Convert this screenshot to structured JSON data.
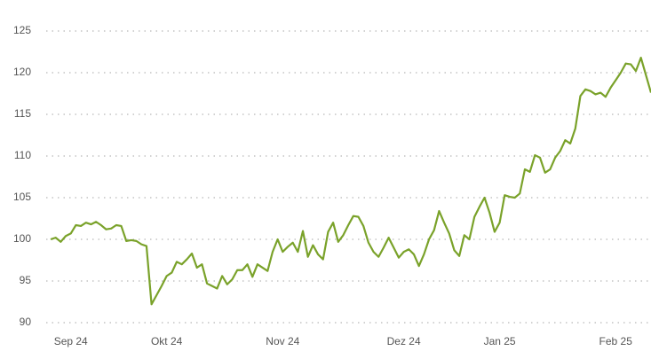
{
  "chart_data": {
    "type": "line",
    "categories": [
      null,
      null,
      null,
      null,
      "Sep 24",
      null,
      null,
      null,
      null,
      null,
      null,
      null,
      null,
      null,
      null,
      null,
      null,
      null,
      null,
      null,
      null,
      null,
      null,
      "Okt 24",
      null,
      null,
      null,
      null,
      null,
      null,
      null,
      null,
      null,
      null,
      null,
      null,
      null,
      null,
      null,
      null,
      null,
      null,
      null,
      null,
      null,
      null,
      "Nov 24",
      null,
      null,
      null,
      null,
      null,
      null,
      null,
      null,
      null,
      null,
      null,
      null,
      null,
      null,
      null,
      null,
      null,
      null,
      null,
      null,
      null,
      null,
      null,
      "Dez 24",
      null,
      null,
      null,
      null,
      null,
      null,
      null,
      null,
      null,
      null,
      null,
      null,
      null,
      null,
      null,
      null,
      null,
      null,
      "Jan 25",
      null,
      null,
      null,
      null,
      null,
      null,
      null,
      null,
      null,
      null,
      null,
      null,
      null,
      null,
      null,
      null,
      null,
      null,
      null,
      null,
      null,
      null,
      "Feb 25",
      null,
      null,
      null,
      null,
      null,
      null,
      null
    ],
    "values": [
      100.0,
      100.2,
      99.7,
      100.4,
      100.7,
      101.7,
      101.6,
      102.0,
      101.8,
      102.1,
      101.7,
      101.2,
      101.3,
      101.7,
      101.6,
      99.8,
      99.9,
      99.8,
      99.4,
      99.2,
      92.2,
      93.3,
      94.4,
      95.6,
      96.0,
      97.3,
      97.0,
      97.6,
      98.3,
      96.6,
      97.0,
      94.7,
      94.4,
      94.1,
      95.6,
      94.6,
      95.2,
      96.3,
      96.3,
      97.0,
      95.5,
      97.0,
      96.6,
      96.2,
      98.5,
      100.0,
      98.5,
      99.1,
      99.6,
      98.5,
      101.0,
      97.9,
      99.3,
      98.2,
      97.6,
      100.9,
      102.0,
      99.7,
      100.5,
      101.7,
      102.8,
      102.7,
      101.6,
      99.6,
      98.5,
      97.9,
      99.0,
      100.2,
      99.0,
      97.8,
      98.5,
      98.8,
      98.2,
      96.8,
      98.2,
      100.0,
      101.1,
      103.4,
      102.0,
      100.7,
      98.7,
      98.0,
      100.5,
      100.0,
      102.7,
      103.9,
      105.0,
      103.2,
      100.9,
      102.0,
      105.3,
      105.1,
      105.0,
      105.5,
      108.4,
      108.1,
      110.1,
      109.8,
      108.0,
      108.4,
      109.8,
      110.6,
      111.9,
      111.5,
      113.3,
      117.2,
      118.0,
      117.8,
      117.4,
      117.6,
      117.1,
      118.2,
      119.1,
      120.0,
      121.1,
      121.0,
      120.2,
      121.8,
      119.7,
      117.6
    ],
    "color": "#7aa22a",
    "ylim": [
      90,
      125
    ],
    "yticks": [
      90,
      95,
      100,
      105,
      110,
      115,
      120,
      125
    ],
    "grid": true
  }
}
